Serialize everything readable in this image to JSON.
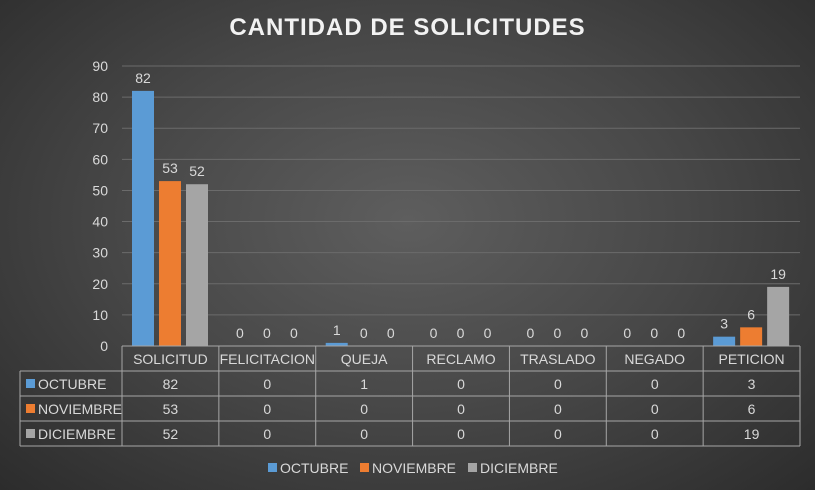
{
  "chart_data": {
    "type": "bar",
    "title": "CANTIDAD DE SOLICITUDES",
    "categories": [
      "SOLICITUD",
      "FELICITACION",
      "QUEJA",
      "RECLAMO",
      "TRASLADO",
      "NEGADO",
      "PETICION"
    ],
    "series": [
      {
        "name": "OCTUBRE",
        "color": "#5b9bd5",
        "values": [
          82,
          0,
          1,
          0,
          0,
          0,
          3
        ]
      },
      {
        "name": "NOVIEMBRE",
        "color": "#ed7d31",
        "values": [
          53,
          0,
          0,
          0,
          0,
          0,
          6
        ]
      },
      {
        "name": "DICIEMBRE",
        "color": "#a5a5a5",
        "values": [
          52,
          0,
          0,
          0,
          0,
          0,
          19
        ]
      }
    ],
    "ylim": [
      0,
      90
    ],
    "yticks": [
      0,
      10,
      20,
      30,
      40,
      50,
      60,
      70,
      80,
      90
    ],
    "grid": true,
    "data_table": true,
    "legend": "bottom"
  }
}
